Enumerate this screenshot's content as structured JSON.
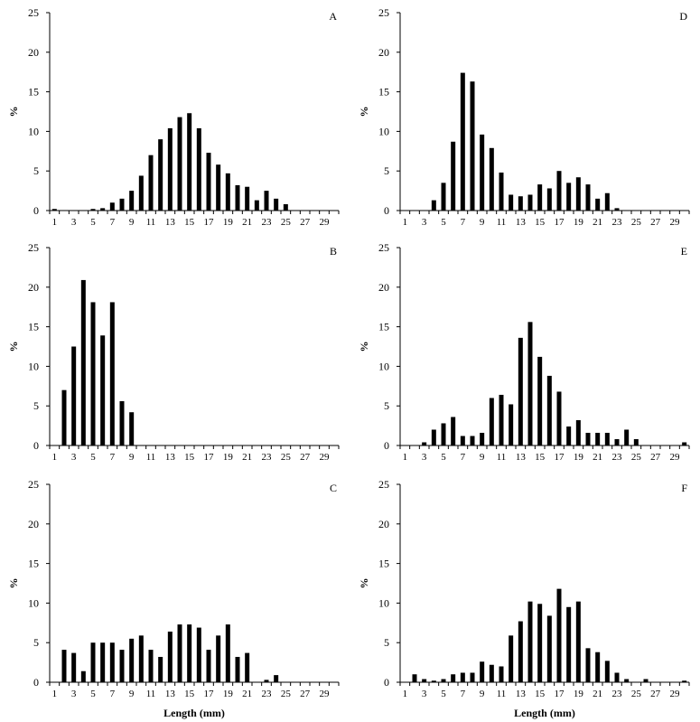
{
  "figure": {
    "xlabel": "Length (mm)"
  },
  "chart_data": [
    {
      "type": "bar",
      "panel_label": "A",
      "ylabel": "%",
      "xlabel": "",
      "ylim": [
        0,
        25
      ],
      "yticks": [
        0,
        5,
        10,
        15,
        20,
        25
      ],
      "xticks": [
        1,
        3,
        5,
        7,
        9,
        11,
        13,
        15,
        17,
        19,
        21,
        23,
        25,
        27,
        29
      ],
      "categories": [
        1,
        2,
        3,
        4,
        5,
        6,
        7,
        8,
        9,
        10,
        11,
        12,
        13,
        14,
        15,
        16,
        17,
        18,
        19,
        20,
        21,
        22,
        23,
        24,
        25,
        26,
        27,
        28,
        29,
        30
      ],
      "values": [
        0.2,
        0,
        0,
        0,
        0.2,
        0.3,
        1.0,
        1.5,
        2.5,
        4.4,
        7.0,
        9.0,
        10.4,
        11.8,
        12.3,
        10.4,
        7.3,
        5.8,
        4.7,
        3.2,
        3.0,
        1.3,
        2.5,
        1.5,
        0.8,
        0,
        0,
        0,
        0,
        0
      ]
    },
    {
      "type": "bar",
      "panel_label": "B",
      "ylabel": "%",
      "xlabel": "",
      "ylim": [
        0,
        25
      ],
      "yticks": [
        0,
        5,
        10,
        15,
        20,
        25
      ],
      "xticks": [
        1,
        3,
        5,
        7,
        9,
        11,
        13,
        15,
        17,
        19,
        21,
        23,
        25,
        27,
        29
      ],
      "categories": [
        1,
        2,
        3,
        4,
        5,
        6,
        7,
        8,
        9,
        10,
        11,
        12,
        13,
        14,
        15,
        16,
        17,
        18,
        19,
        20,
        21,
        22,
        23,
        24,
        25,
        26,
        27,
        28,
        29,
        30
      ],
      "values": [
        0,
        7.0,
        12.5,
        20.9,
        18.1,
        13.9,
        18.1,
        5.6,
        4.2,
        0,
        0,
        0,
        0,
        0,
        0,
        0,
        0,
        0,
        0,
        0,
        0,
        0,
        0,
        0,
        0,
        0,
        0,
        0,
        0,
        0
      ]
    },
    {
      "type": "bar",
      "panel_label": "C",
      "ylabel": "%",
      "xlabel": "Length (mm)",
      "ylim": [
        0,
        25
      ],
      "yticks": [
        0,
        5,
        10,
        15,
        20,
        25
      ],
      "xticks": [
        1,
        3,
        5,
        7,
        9,
        11,
        13,
        15,
        17,
        19,
        21,
        23,
        25,
        27,
        29
      ],
      "categories": [
        1,
        2,
        3,
        4,
        5,
        6,
        7,
        8,
        9,
        10,
        11,
        12,
        13,
        14,
        15,
        16,
        17,
        18,
        19,
        20,
        21,
        22,
        23,
        24,
        25,
        26,
        27,
        28,
        29,
        30
      ],
      "values": [
        0,
        4.1,
        3.7,
        1.4,
        5.0,
        5.0,
        5.0,
        4.1,
        5.5,
        5.9,
        4.1,
        3.2,
        6.4,
        7.3,
        7.3,
        6.9,
        4.1,
        5.9,
        7.3,
        3.2,
        3.7,
        0,
        0.3,
        0.9,
        0,
        0,
        0,
        0,
        0,
        0
      ]
    },
    {
      "type": "bar",
      "panel_label": "D",
      "ylabel": "%",
      "xlabel": "",
      "ylim": [
        0,
        25
      ],
      "yticks": [
        0,
        5,
        10,
        15,
        20,
        25
      ],
      "xticks": [
        1,
        3,
        5,
        7,
        9,
        11,
        13,
        15,
        17,
        19,
        21,
        23,
        25,
        27,
        29
      ],
      "categories": [
        1,
        2,
        3,
        4,
        5,
        6,
        7,
        8,
        9,
        10,
        11,
        12,
        13,
        14,
        15,
        16,
        17,
        18,
        19,
        20,
        21,
        22,
        23,
        24,
        25,
        26,
        27,
        28,
        29,
        30
      ],
      "values": [
        0,
        0,
        0,
        1.3,
        3.5,
        8.7,
        17.4,
        16.3,
        9.6,
        7.9,
        4.8,
        2.0,
        1.8,
        2.0,
        3.3,
        2.8,
        5.0,
        3.5,
        4.2,
        3.3,
        1.5,
        2.2,
        0.3,
        0,
        0,
        0,
        0,
        0,
        0,
        0
      ]
    },
    {
      "type": "bar",
      "panel_label": "E",
      "ylabel": "%",
      "xlabel": "",
      "ylim": [
        0,
        25
      ],
      "yticks": [
        0,
        5,
        10,
        15,
        20,
        25
      ],
      "xticks": [
        1,
        3,
        5,
        7,
        9,
        11,
        13,
        15,
        17,
        19,
        21,
        23,
        25,
        27,
        29
      ],
      "categories": [
        1,
        2,
        3,
        4,
        5,
        6,
        7,
        8,
        9,
        10,
        11,
        12,
        13,
        14,
        15,
        16,
        17,
        18,
        19,
        20,
        21,
        22,
        23,
        24,
        25,
        26,
        27,
        28,
        29,
        30
      ],
      "values": [
        0,
        0,
        0.4,
        2.0,
        2.8,
        3.6,
        1.2,
        1.2,
        1.6,
        6.0,
        6.4,
        5.2,
        13.6,
        15.6,
        11.2,
        8.8,
        6.8,
        2.4,
        3.2,
        1.6,
        1.6,
        1.6,
        0.8,
        2.0,
        0.8,
        0,
        0,
        0,
        0,
        0.4
      ]
    },
    {
      "type": "bar",
      "panel_label": "F",
      "ylabel": "%",
      "xlabel": "Length (mm)",
      "ylim": [
        0,
        25
      ],
      "yticks": [
        0,
        5,
        10,
        15,
        20,
        25
      ],
      "xticks": [
        1,
        3,
        5,
        7,
        9,
        11,
        13,
        15,
        17,
        19,
        21,
        23,
        25,
        27,
        29
      ],
      "categories": [
        1,
        2,
        3,
        4,
        5,
        6,
        7,
        8,
        9,
        10,
        11,
        12,
        13,
        14,
        15,
        16,
        17,
        18,
        19,
        20,
        21,
        22,
        23,
        24,
        25,
        26,
        27,
        28,
        29,
        30
      ],
      "values": [
        0,
        1.0,
        0.4,
        0.2,
        0.4,
        1.0,
        1.2,
        1.2,
        2.6,
        2.2,
        2.0,
        5.9,
        7.7,
        10.2,
        9.9,
        8.4,
        11.8,
        9.5,
        10.2,
        4.3,
        3.8,
        2.7,
        1.2,
        0.4,
        0,
        0.4,
        0,
        0,
        0,
        0.2
      ]
    }
  ]
}
